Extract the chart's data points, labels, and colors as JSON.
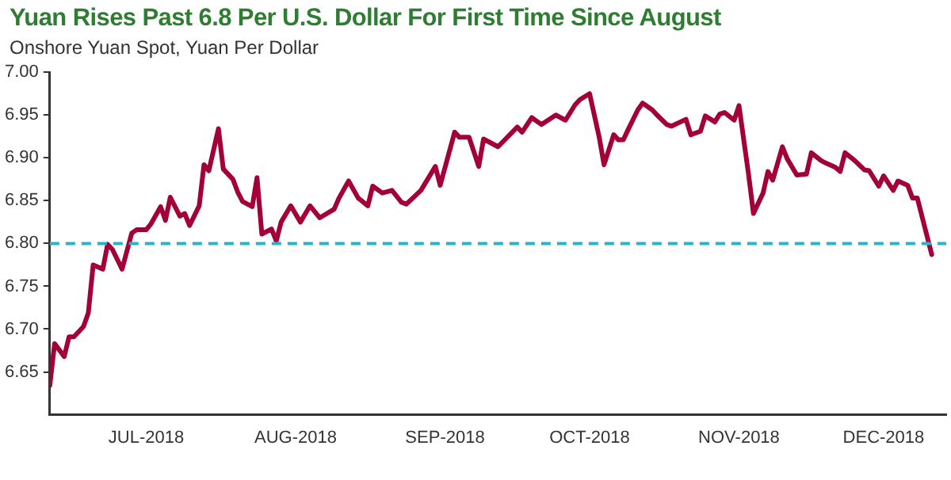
{
  "chart_data": {
    "type": "line",
    "title": "Yuan Rises Past 6.8 Per U.S. Dollar For First Time Since August",
    "subtitle": "Onshore Yuan Spot, Yuan Per Dollar",
    "x": [
      "2018-06-11",
      "2018-06-12",
      "2018-06-14",
      "2018-06-15",
      "2018-06-16",
      "2018-06-18",
      "2018-06-19",
      "2018-06-20",
      "2018-06-22",
      "2018-06-23",
      "2018-06-24",
      "2018-06-26",
      "2018-06-28",
      "2018-06-29",
      "2018-07-01",
      "2018-07-02",
      "2018-07-04",
      "2018-07-05",
      "2018-07-06",
      "2018-07-08",
      "2018-07-09",
      "2018-07-10",
      "2018-07-12",
      "2018-07-13",
      "2018-07-14",
      "2018-07-16",
      "2018-07-17",
      "2018-07-19",
      "2018-07-20",
      "2018-07-21",
      "2018-07-23",
      "2018-07-24",
      "2018-07-25",
      "2018-07-27",
      "2018-07-28",
      "2018-07-29",
      "2018-07-31",
      "2018-08-02",
      "2018-08-04",
      "2018-08-06",
      "2018-08-09",
      "2018-08-10",
      "2018-08-12",
      "2018-08-14",
      "2018-08-16",
      "2018-08-17",
      "2018-08-19",
      "2018-08-21",
      "2018-08-23",
      "2018-08-24",
      "2018-08-27",
      "2018-08-30",
      "2018-08-31",
      "2018-09-03",
      "2018-09-04",
      "2018-09-06",
      "2018-09-08",
      "2018-09-09",
      "2018-09-12",
      "2018-09-16",
      "2018-09-17",
      "2018-09-19",
      "2018-09-21",
      "2018-09-24",
      "2018-09-26",
      "2018-09-28",
      "2018-09-29",
      "2018-10-01",
      "2018-10-03",
      "2018-10-04",
      "2018-10-06",
      "2018-10-07",
      "2018-10-08",
      "2018-10-09",
      "2018-10-11",
      "2018-10-12",
      "2018-10-14",
      "2018-10-15",
      "2018-10-17",
      "2018-10-18",
      "2018-10-21",
      "2018-10-22",
      "2018-10-24",
      "2018-10-25",
      "2018-10-27",
      "2018-10-28",
      "2018-10-29",
      "2018-10-31",
      "2018-11-01",
      "2018-11-03",
      "2018-11-04",
      "2018-11-06",
      "2018-11-07",
      "2018-11-08",
      "2018-11-10",
      "2018-11-11",
      "2018-11-13",
      "2018-11-15",
      "2018-11-16",
      "2018-11-18",
      "2018-11-19",
      "2018-11-21",
      "2018-11-22",
      "2018-11-23",
      "2018-11-25",
      "2018-11-27",
      "2018-11-28",
      "2018-11-30",
      "2018-12-01",
      "2018-12-03",
      "2018-12-04",
      "2018-12-06",
      "2018-12-07",
      "2018-12-08",
      "2018-12-10",
      "2018-12-11"
    ],
    "series": [
      {
        "color": "#a3003a",
        "values": [
          6.634,
          6.683,
          6.668,
          6.691,
          6.691,
          6.703,
          6.719,
          6.775,
          6.77,
          6.799,
          6.793,
          6.77,
          6.812,
          6.816,
          6.816,
          6.823,
          6.843,
          6.827,
          6.854,
          6.832,
          6.835,
          6.821,
          6.844,
          6.892,
          6.885,
          6.934,
          6.887,
          6.875,
          6.86,
          6.849,
          6.843,
          6.877,
          6.811,
          6.817,
          6.803,
          6.825,
          6.844,
          6.825,
          6.844,
          6.83,
          6.84,
          6.853,
          6.873,
          6.853,
          6.844,
          6.867,
          6.859,
          6.862,
          6.848,
          6.846,
          6.862,
          6.89,
          6.868,
          6.93,
          6.924,
          6.924,
          6.89,
          6.922,
          6.913,
          6.936,
          6.93,
          6.947,
          6.939,
          6.95,
          6.944,
          6.962,
          6.968,
          6.975,
          6.924,
          6.892,
          6.927,
          6.921,
          6.921,
          6.933,
          6.956,
          6.964,
          6.956,
          6.95,
          6.939,
          6.937,
          6.945,
          6.927,
          6.931,
          6.949,
          6.942,
          6.951,
          6.953,
          6.944,
          6.961,
          6.88,
          6.835,
          6.859,
          6.884,
          6.874,
          6.913,
          6.899,
          6.88,
          6.881,
          6.906,
          6.897,
          6.894,
          6.889,
          6.884,
          6.906,
          6.897,
          6.886,
          6.885,
          6.867,
          6.879,
          6.862,
          6.873,
          6.868,
          6.853,
          6.853,
          6.809,
          6.787
        ]
      }
    ],
    "xlim": [
      "2018-06-11",
      "2018-12-14"
    ],
    "xticks": [
      {
        "value": "2018-07-01",
        "label": "JUL-2018"
      },
      {
        "value": "2018-08-01",
        "label": "AUG-2018"
      },
      {
        "value": "2018-09-01",
        "label": "SEP-2018"
      },
      {
        "value": "2018-10-01",
        "label": "OCT-2018"
      },
      {
        "value": "2018-11-01",
        "label": "NOV-2018"
      },
      {
        "value": "2018-12-01",
        "label": "DEC-2018"
      }
    ],
    "ylim": [
      6.6,
      7.0
    ],
    "yticks": [
      6.65,
      {
        "value": 6.7,
        "label": "6.70"
      },
      6.75,
      {
        "value": 6.8,
        "label": "6.80"
      },
      6.85,
      {
        "value": 6.9,
        "label": "6.90"
      },
      6.95,
      {
        "value": 7.0,
        "label": "7.00"
      }
    ],
    "ref_lines": [
      {
        "axis": "y",
        "value": 6.8,
        "color": "#2bb5c4",
        "line_style": "dashed"
      }
    ],
    "grid": false,
    "legend": false,
    "marker": "none",
    "line_style": "solid"
  }
}
